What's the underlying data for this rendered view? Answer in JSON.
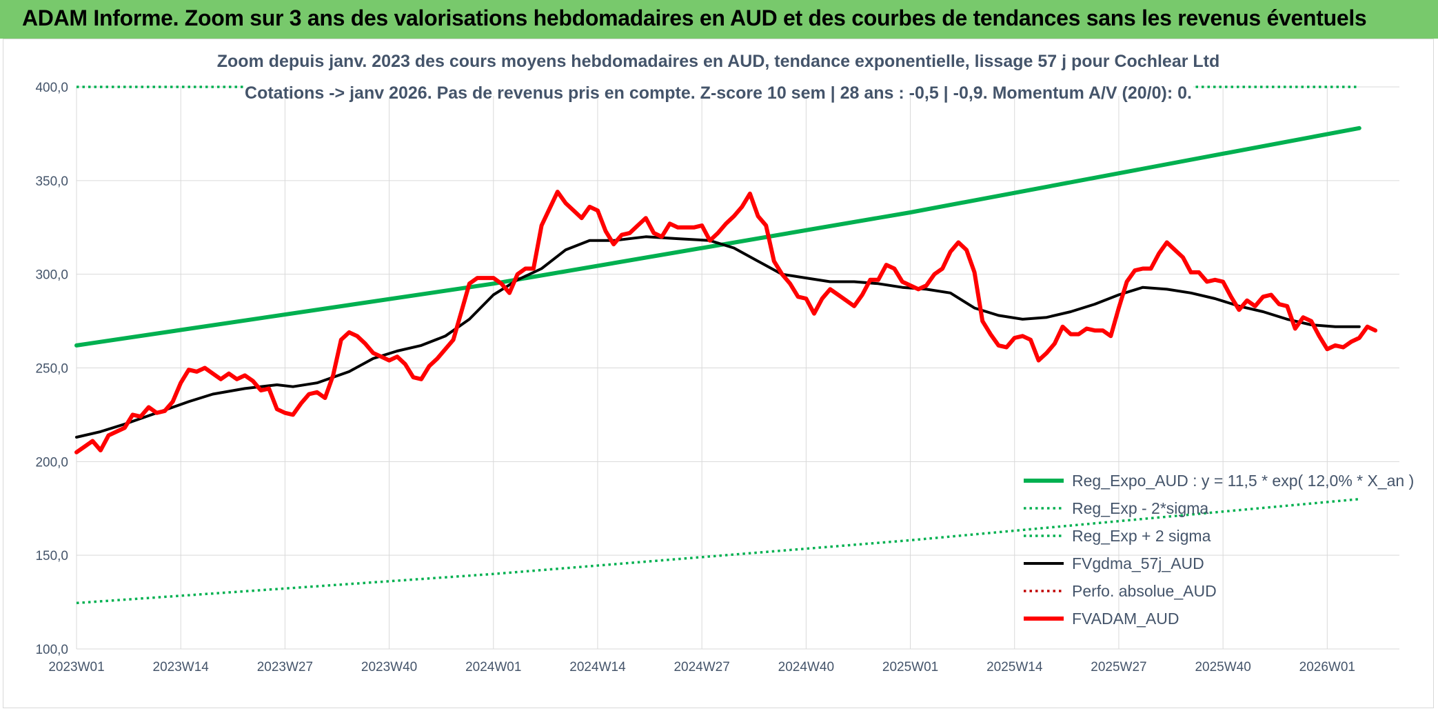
{
  "banner": {
    "title": "ADAM Informe. Zoom sur 3 ans des valorisations hebdomadaires en AUD et des courbes de tendances sans les revenus éventuels"
  },
  "colors": {
    "banner_bg": "#78c96c",
    "regression": "#00b050",
    "moving_average": "#000000",
    "valuation": "#ff0000",
    "text": "#44546a",
    "grid": "#d9d9d9"
  },
  "chart_data": {
    "type": "line",
    "title_lines": [
      "Zoom depuis janv. 2023 des cours moyens hebdomadaires en AUD, tendance exponentielle, lissage 57 j pour Cochlear Ltd",
      "Cotations -> janv 2026. Pas de revenus pris en compte. Z-score 10 sem | 28 ans : -0,5 | -0,9. Momentum A/V (20/0): 0."
    ],
    "xlabel": "",
    "ylabel": "",
    "ylim": [
      100,
      400
    ],
    "y_ticks": [
      "100,0",
      "150,0",
      "200,0",
      "250,0",
      "300,0",
      "350,0",
      "400,0"
    ],
    "x_range": [
      0,
      165
    ],
    "x_ticks": [
      {
        "x": 0,
        "label": "2023W01"
      },
      {
        "x": 13,
        "label": "2023W14"
      },
      {
        "x": 26,
        "label": "2023W27"
      },
      {
        "x": 39,
        "label": "2023W40"
      },
      {
        "x": 52,
        "label": "2024W01"
      },
      {
        "x": 65,
        "label": "2024W14"
      },
      {
        "x": 78,
        "label": "2024W27"
      },
      {
        "x": 91,
        "label": "2024W40"
      },
      {
        "x": 104,
        "label": "2025W01"
      },
      {
        "x": 117,
        "label": "2025W14"
      },
      {
        "x": 130,
        "label": "2025W27"
      },
      {
        "x": 143,
        "label": "2025W40"
      },
      {
        "x": 156,
        "label": "2026W01"
      }
    ],
    "grid": true,
    "legend_position": "bottom-right",
    "series": [
      {
        "name": "Reg_Expo_AUD : y = 11,5 * exp( 12,0% *  X_an )",
        "style": "solid-thick",
        "color": "#00b050",
        "points": [
          [
            0,
            262
          ],
          [
            52,
            295
          ],
          [
            104,
            333
          ],
          [
            160,
            378
          ]
        ]
      },
      {
        "name": "Reg_Exp - 2*sigma",
        "style": "dotted",
        "color": "#00b050",
        "points": [
          [
            0,
            124.5
          ],
          [
            52,
            140
          ],
          [
            104,
            158
          ],
          [
            160,
            180
          ]
        ]
      },
      {
        "name": "Reg_Exp + 2 sigma",
        "style": "dotted",
        "color": "#00b050",
        "points": [
          [
            0,
            400
          ],
          [
            160,
            400
          ]
        ]
      },
      {
        "name": "FVgdma_57j_AUD",
        "style": "solid",
        "color": "#000000",
        "points": [
          [
            0,
            213
          ],
          [
            3,
            216
          ],
          [
            6,
            220
          ],
          [
            10,
            226
          ],
          [
            14,
            232
          ],
          [
            17,
            236
          ],
          [
            21,
            239
          ],
          [
            25,
            241
          ],
          [
            27,
            240
          ],
          [
            30,
            242
          ],
          [
            34,
            248
          ],
          [
            37,
            255
          ],
          [
            40,
            259
          ],
          [
            43,
            262
          ],
          [
            46,
            267
          ],
          [
            49,
            276
          ],
          [
            52,
            289
          ],
          [
            55,
            297
          ],
          [
            58,
            303
          ],
          [
            61,
            313
          ],
          [
            64,
            318
          ],
          [
            67,
            318
          ],
          [
            71,
            320
          ],
          [
            75,
            319
          ],
          [
            79,
            318
          ],
          [
            82,
            314
          ],
          [
            85,
            307
          ],
          [
            88,
            300
          ],
          [
            91,
            298
          ],
          [
            94,
            296
          ],
          [
            97,
            296
          ],
          [
            100,
            295
          ],
          [
            103,
            293
          ],
          [
            106,
            292
          ],
          [
            109,
            290
          ],
          [
            112,
            282
          ],
          [
            115,
            278
          ],
          [
            118,
            276
          ],
          [
            121,
            277
          ],
          [
            124,
            280
          ],
          [
            127,
            284
          ],
          [
            130,
            289
          ],
          [
            133,
            293
          ],
          [
            136,
            292
          ],
          [
            139,
            290
          ],
          [
            142,
            287
          ],
          [
            145,
            283
          ],
          [
            148,
            280
          ],
          [
            151,
            276
          ],
          [
            154,
            273
          ],
          [
            157,
            272
          ],
          [
            160,
            272
          ]
        ]
      },
      {
        "name": "Perfo. absolue_AUD",
        "style": "dotted",
        "color": "#c00000",
        "points": []
      },
      {
        "name": "FVADAM_AUD",
        "style": "solid-thick",
        "color": "#ff0000",
        "points": [
          [
            0,
            205
          ],
          [
            2,
            211
          ],
          [
            3,
            206
          ],
          [
            4,
            214
          ],
          [
            6,
            218
          ],
          [
            7,
            225
          ],
          [
            8,
            224
          ],
          [
            9,
            229
          ],
          [
            10,
            226
          ],
          [
            11,
            227
          ],
          [
            12,
            232
          ],
          [
            13,
            242
          ],
          [
            14,
            249
          ],
          [
            15,
            248
          ],
          [
            16,
            250
          ],
          [
            17,
            247
          ],
          [
            18,
            244
          ],
          [
            19,
            247
          ],
          [
            20,
            244
          ],
          [
            21,
            246
          ],
          [
            22,
            243
          ],
          [
            23,
            238
          ],
          [
            24,
            239
          ],
          [
            25,
            228
          ],
          [
            26,
            226
          ],
          [
            27,
            225
          ],
          [
            28,
            231
          ],
          [
            29,
            236
          ],
          [
            30,
            237
          ],
          [
            31,
            234
          ],
          [
            32,
            246
          ],
          [
            33,
            265
          ],
          [
            34,
            269
          ],
          [
            35,
            267
          ],
          [
            36,
            263
          ],
          [
            37,
            258
          ],
          [
            38,
            256
          ],
          [
            39,
            254
          ],
          [
            40,
            256
          ],
          [
            41,
            252
          ],
          [
            42,
            245
          ],
          [
            43,
            244
          ],
          [
            44,
            251
          ],
          [
            45,
            255
          ],
          [
            46,
            260
          ],
          [
            47,
            265
          ],
          [
            48,
            280
          ],
          [
            49,
            295
          ],
          [
            50,
            298
          ],
          [
            51,
            298
          ],
          [
            52,
            298
          ],
          [
            53,
            295
          ],
          [
            54,
            290
          ],
          [
            55,
            300
          ],
          [
            56,
            303
          ],
          [
            57,
            303
          ],
          [
            58,
            326
          ],
          [
            59,
            335
          ],
          [
            60,
            344
          ],
          [
            61,
            338
          ],
          [
            62,
            334
          ],
          [
            63,
            330
          ],
          [
            64,
            336
          ],
          [
            65,
            334
          ],
          [
            66,
            323
          ],
          [
            67,
            316
          ],
          [
            68,
            321
          ],
          [
            69,
            322
          ],
          [
            70,
            326
          ],
          [
            71,
            330
          ],
          [
            72,
            322
          ],
          [
            73,
            320
          ],
          [
            74,
            327
          ],
          [
            75,
            325
          ],
          [
            76,
            325
          ],
          [
            77,
            325
          ],
          [
            78,
            326
          ],
          [
            79,
            318
          ],
          [
            80,
            322
          ],
          [
            81,
            327
          ],
          [
            82,
            331
          ],
          [
            83,
            336
          ],
          [
            84,
            343
          ],
          [
            85,
            331
          ],
          [
            86,
            326
          ],
          [
            87,
            307
          ],
          [
            88,
            300
          ],
          [
            89,
            295
          ],
          [
            90,
            288
          ],
          [
            91,
            287
          ],
          [
            92,
            279
          ],
          [
            93,
            287
          ],
          [
            94,
            292
          ],
          [
            95,
            289
          ],
          [
            96,
            286
          ],
          [
            97,
            283
          ],
          [
            98,
            289
          ],
          [
            99,
            297
          ],
          [
            100,
            297
          ],
          [
            101,
            305
          ],
          [
            102,
            303
          ],
          [
            103,
            296
          ],
          [
            104,
            294
          ],
          [
            105,
            292
          ],
          [
            106,
            294
          ],
          [
            107,
            300
          ],
          [
            108,
            303
          ],
          [
            109,
            312
          ],
          [
            110,
            317
          ],
          [
            111,
            313
          ],
          [
            112,
            301
          ],
          [
            113,
            275
          ],
          [
            114,
            268
          ],
          [
            115,
            262
          ],
          [
            116,
            261
          ],
          [
            117,
            266
          ],
          [
            118,
            267
          ],
          [
            119,
            265
          ],
          [
            120,
            254
          ],
          [
            121,
            258
          ],
          [
            122,
            263
          ],
          [
            123,
            272
          ],
          [
            124,
            268
          ],
          [
            125,
            268
          ],
          [
            126,
            271
          ],
          [
            127,
            270
          ],
          [
            128,
            270
          ],
          [
            129,
            267
          ],
          [
            130,
            282
          ],
          [
            131,
            296
          ],
          [
            132,
            302
          ],
          [
            133,
            303
          ],
          [
            134,
            303
          ],
          [
            135,
            311
          ],
          [
            136,
            317
          ],
          [
            137,
            313
          ],
          [
            138,
            309
          ],
          [
            139,
            301
          ],
          [
            140,
            301
          ],
          [
            141,
            296
          ],
          [
            142,
            297
          ],
          [
            143,
            296
          ],
          [
            144,
            288
          ],
          [
            145,
            281
          ],
          [
            146,
            286
          ],
          [
            147,
            283
          ],
          [
            148,
            288
          ],
          [
            149,
            289
          ],
          [
            150,
            284
          ],
          [
            151,
            283
          ],
          [
            152,
            271
          ],
          [
            153,
            277
          ],
          [
            154,
            275
          ],
          [
            155,
            267
          ],
          [
            156,
            260
          ],
          [
            157,
            262
          ],
          [
            158,
            261
          ],
          [
            159,
            264
          ],
          [
            160,
            266
          ],
          [
            161,
            272
          ],
          [
            162,
            270
          ]
        ]
      }
    ]
  }
}
